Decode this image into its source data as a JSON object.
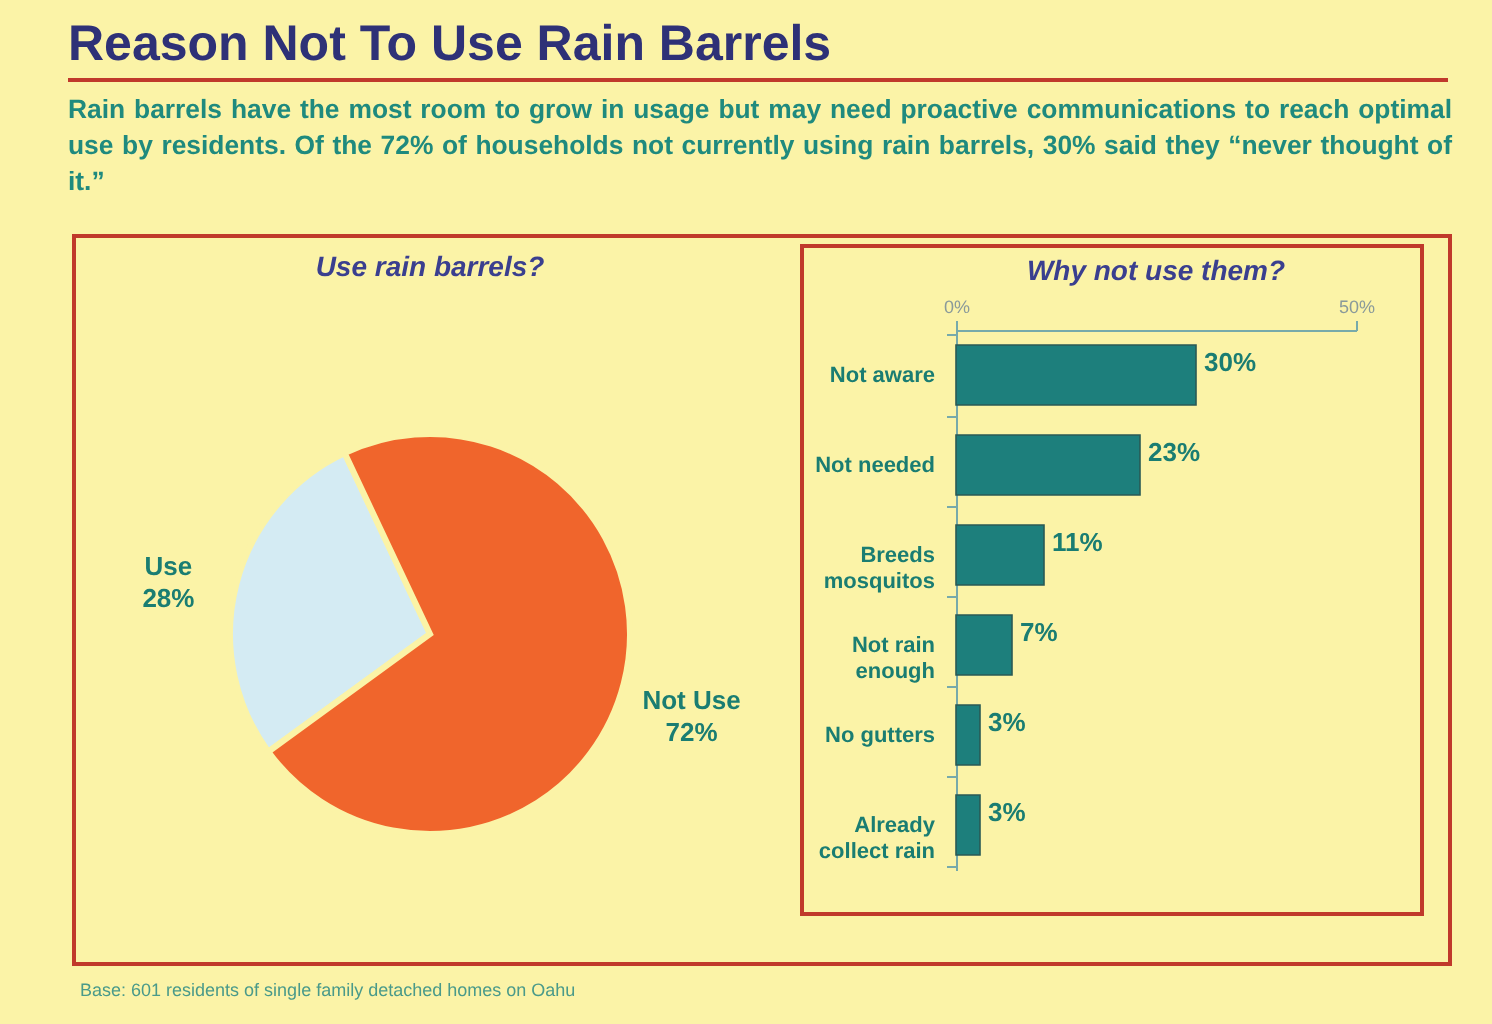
{
  "chart_data": [
    {
      "type": "other",
      "title": "Reason Not To Use Rain Barrels",
      "subtitle": "Rain barrels have the most room to grow in usage but may need proactive communications to reach optimal use by residents.  Of the 72% of households not currently using rain barrels, 30% said they “never thought of it.”",
      "annotations": [
        "Base: 601 residents of single family detached homes on Oahu"
      ]
    },
    {
      "type": "pie",
      "title": "Use rain barrels?",
      "categories": [
        "Use",
        "Not Use"
      ],
      "values": [
        28,
        72
      ],
      "colors": [
        "#d4ebf3",
        "#f0652c"
      ],
      "value_labels": [
        "28%",
        "72%"
      ],
      "legend": false
    },
    {
      "type": "bar",
      "orientation": "horizontal",
      "title": "Why not use them?",
      "categories": [
        "Not aware",
        "Not needed",
        "Breeds mosquitos",
        "Not rain enough",
        "No gutters",
        "Already collect rain"
      ],
      "values": [
        30,
        23,
        11,
        7,
        3,
        3
      ],
      "color": "#1d7f7c",
      "value_labels": [
        "30%",
        "23%",
        "11%",
        "7%",
        "3%",
        "3%"
      ],
      "xlim": [
        0,
        50
      ],
      "xticks": [
        {
          "value": 0,
          "label": "0%"
        },
        {
          "value": 50,
          "label": "50%"
        }
      ],
      "grid": false
    }
  ]
}
